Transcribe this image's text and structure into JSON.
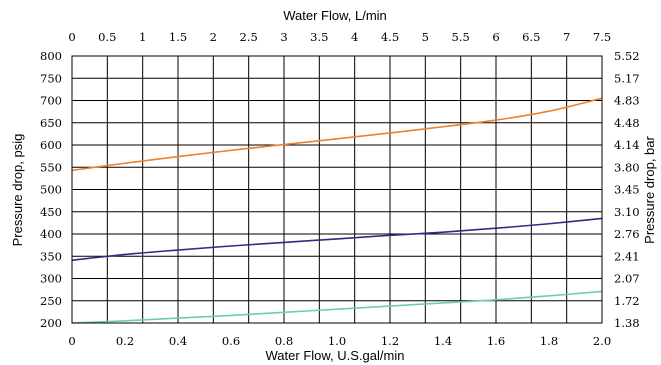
{
  "chart_data": {
    "type": "line",
    "x_bottom": {
      "label": "Water Flow, U.S.gal/min",
      "ticks": [
        "0",
        "0.2",
        "0.4",
        "0.6",
        "0.8",
        "1.0",
        "1.2",
        "1.4",
        "1.6",
        "1.8",
        "2.0"
      ],
      "range": [
        0,
        2.0
      ]
    },
    "x_top": {
      "label": "Water Flow, L/min",
      "ticks": [
        "0",
        "0.5",
        "1",
        "1.5",
        "2",
        "2.5",
        "3",
        "3.5",
        "4",
        "4.5",
        "5",
        "5.5",
        "6",
        "6.5",
        "7",
        "7.5"
      ],
      "range": [
        0,
        7.5
      ]
    },
    "y_left": {
      "label": "Pressure drop, psig",
      "ticks": [
        "200",
        "250",
        "300",
        "350",
        "400",
        "450",
        "500",
        "550",
        "600",
        "650",
        "700",
        "750",
        "800"
      ],
      "range": [
        200,
        800
      ]
    },
    "y_right": {
      "label": "Pressure drop, bar",
      "ticks": [
        "1.38",
        "1.72",
        "2.07",
        "2.41",
        "2.76",
        "3.10",
        "3.45",
        "3.80",
        "4.14",
        "4.48",
        "4.83",
        "5.17",
        "5.52"
      ]
    },
    "grid": true,
    "series": [
      {
        "color": "#f07f2e",
        "x": [
          0,
          0.2,
          0.4,
          0.6,
          0.8,
          1.0,
          1.2,
          1.4,
          1.6,
          1.8,
          2.0
        ],
        "y": [
          543,
          559,
          574,
          588,
          601,
          614,
          627,
          641,
          656,
          676,
          705
        ]
      },
      {
        "color": "#2e2e82",
        "x": [
          0,
          0.2,
          0.4,
          0.6,
          0.8,
          1.0,
          1.2,
          1.4,
          1.6,
          1.8,
          2.0
        ],
        "y": [
          341,
          354,
          364,
          373,
          381,
          389,
          397,
          404,
          413,
          423,
          435
        ]
      },
      {
        "color": "#6fcfa3",
        "x": [
          0,
          0.2,
          0.4,
          0.6,
          0.8,
          1.0,
          1.2,
          1.4,
          1.6,
          1.8,
          2.0
        ],
        "y": [
          200,
          205,
          211,
          217,
          224,
          231,
          238,
          245,
          252,
          261,
          271
        ]
      }
    ]
  }
}
